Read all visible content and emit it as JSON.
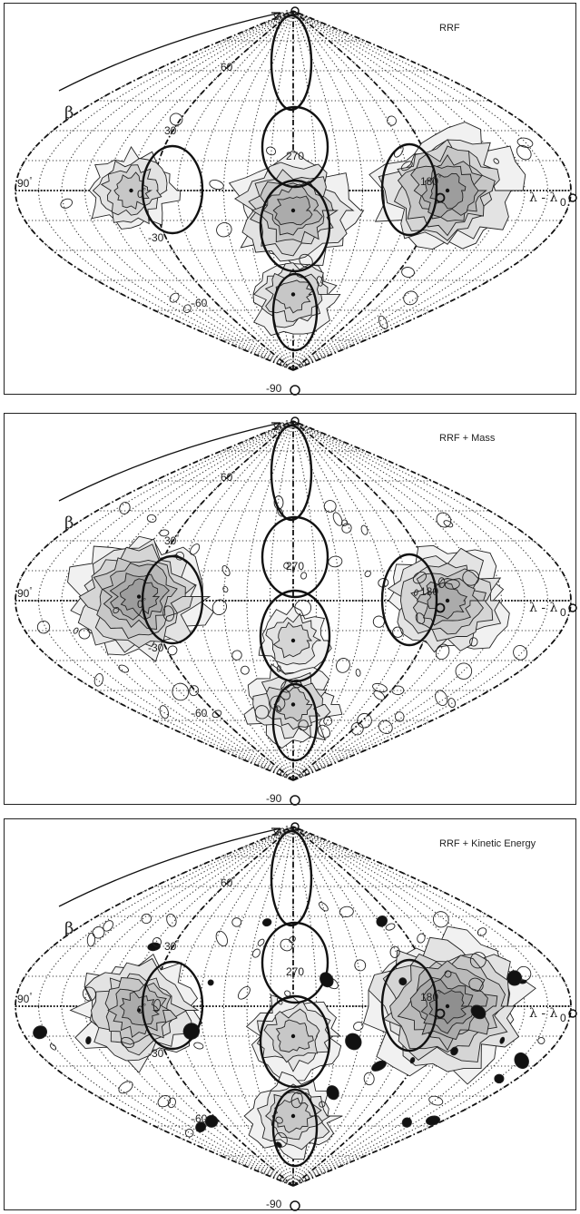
{
  "panels": [
    {
      "title": "RRF",
      "beta": "β",
      "lon_axis": "λ - λ",
      "lon_sub": "0",
      "labels": {
        "lat90": "90",
        "lat60": "60",
        "lat30": "30",
        "latm30": "-30",
        "latm60": "-60",
        "latm90": "-90",
        "lon90": "90",
        "lon0": "0",
        "lon270": "270",
        "lon180": "180"
      },
      "blobs": [
        {
          "lon": -105,
          "lat": 0,
          "strength": 4
        },
        {
          "lon": 0,
          "lat": -10,
          "strength": 6
        },
        {
          "lon": 100,
          "lat": 0,
          "strength": 7
        },
        {
          "lon": 0,
          "lat": -52,
          "strength": 4
        }
      ]
    },
    {
      "title": "RRF + Mass",
      "beta": "β",
      "lon_axis": "λ - λ",
      "lon_sub": "0",
      "labels": {
        "lat90": "90",
        "lat60": "60",
        "lat30": "30",
        "latm30": "-30",
        "latm60": "-60",
        "latm90": "-90",
        "lon90": "90",
        "lon0": "0",
        "lon270": "270",
        "lon180": "180"
      },
      "blobs": [
        {
          "lon": -100,
          "lat": 2,
          "strength": 7
        },
        {
          "lon": 0,
          "lat": -20,
          "strength": 3
        },
        {
          "lon": 100,
          "lat": 0,
          "strength": 6
        },
        {
          "lon": 0,
          "lat": -52,
          "strength": 4
        }
      ]
    },
    {
      "title": "RRF + Kinetic Energy",
      "beta": "β",
      "lon_axis": "λ - λ",
      "lon_sub": "0",
      "labels": {
        "lat90": "90",
        "lat60": "60",
        "lat30": "30",
        "latm30": "-30",
        "latm60": "-60",
        "latm90": "-90",
        "lon90": "90",
        "lon0": "0",
        "lon270": "270",
        "lon180": "180"
      },
      "blobs": [
        {
          "lon": -100,
          "lat": -2,
          "strength": 6
        },
        {
          "lon": 0,
          "lat": -15,
          "strength": 4
        },
        {
          "lon": 100,
          "lat": 0,
          "strength": 8
        },
        {
          "lon": 0,
          "lat": -55,
          "strength": 4
        }
      ]
    }
  ],
  "degree_symbol": "°"
}
